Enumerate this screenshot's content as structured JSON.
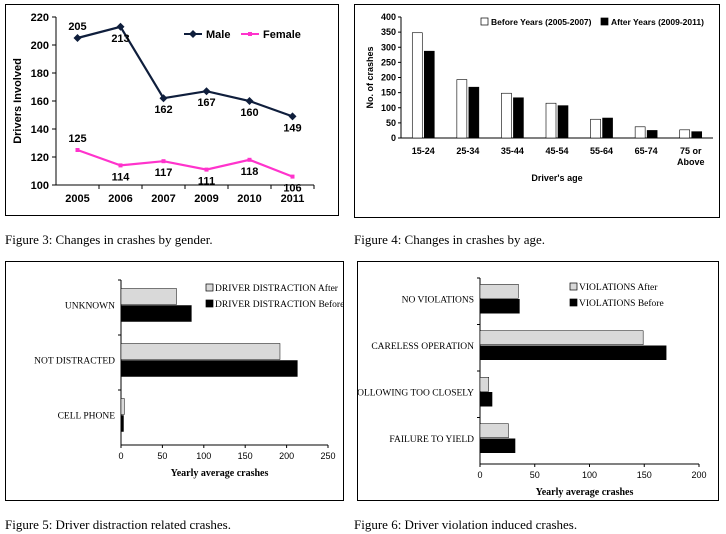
{
  "captions": {
    "fig3": "Figure 3: Changes in crashes by gender.",
    "fig4": "Figure 4: Changes in crashes by age.",
    "fig5": "Figure 5: Driver distraction related crashes.",
    "fig6": "Figure 6: Driver violation induced crashes."
  },
  "chart_data": [
    {
      "id": "fig3",
      "type": "line",
      "xlabel": "",
      "ylabel": "Drivers Involved",
      "categories": [
        "2005",
        "2006",
        "2007",
        "2009",
        "2010",
        "2011"
      ],
      "ylim": [
        100,
        220
      ],
      "yticks": [
        100,
        120,
        140,
        160,
        180,
        200,
        220
      ],
      "legend_position": "top-right",
      "series": [
        {
          "name": "Male",
          "values": [
            205,
            213,
            162,
            167,
            160,
            149
          ],
          "color": "#0f1e3c"
        },
        {
          "name": "Female",
          "values": [
            125,
            114,
            117,
            111,
            118,
            106
          ],
          "color": "#ff33cc"
        }
      ]
    },
    {
      "id": "fig4",
      "type": "bar",
      "xlabel": "Driver's age",
      "ylabel": "No. of crashes",
      "categories": [
        "15-24",
        "25-34",
        "35-44",
        "45-54",
        "55-64",
        "65-74",
        "75 or Above"
      ],
      "ylim": [
        0,
        400
      ],
      "yticks": [
        0,
        50,
        100,
        150,
        200,
        250,
        300,
        350,
        400
      ],
      "legend_position": "top",
      "series": [
        {
          "name": "Before Years (2005-2007)",
          "values": [
            348,
            193,
            148,
            115,
            62,
            37,
            27
          ],
          "color": "#ffffff"
        },
        {
          "name": "After Years (2009-2011)",
          "values": [
            287,
            168,
            133,
            107,
            66,
            25,
            21
          ],
          "color": "#000000"
        }
      ]
    },
    {
      "id": "fig5",
      "type": "bar",
      "orientation": "horizontal",
      "xlabel": "Yearly average crashes",
      "ylabel": "",
      "categories": [
        "UNKNOWN",
        "NOT DISTRACTED",
        "CELL PHONE"
      ],
      "xlim": [
        0,
        250
      ],
      "xticks": [
        0,
        50,
        100,
        150,
        200,
        250
      ],
      "legend_position": "top-right",
      "series": [
        {
          "name": "DRIVER DISTRACTION After",
          "values": [
            67,
            192,
            4
          ],
          "color": "#d9d9d9"
        },
        {
          "name": "DRIVER DISTRACTION Before",
          "values": [
            85,
            213,
            3
          ],
          "color": "#000000"
        }
      ]
    },
    {
      "id": "fig6",
      "type": "bar",
      "orientation": "horizontal",
      "xlabel": "Yearly average crashes",
      "ylabel": "",
      "categories": [
        "NO VIOLATIONS",
        "CARELESS OPERATION",
        "FOLLOWING TOO CLOSELY",
        "FAILURE TO YIELD"
      ],
      "xlim": [
        0,
        200
      ],
      "xticks": [
        0,
        50,
        100,
        150,
        200
      ],
      "legend_position": "top-right",
      "series": [
        {
          "name": "VIOLATIONS After",
          "values": [
            35,
            149,
            8,
            26
          ],
          "color": "#d9d9d9"
        },
        {
          "name": "VIOLATIONS Before",
          "values": [
            36,
            170,
            11,
            32
          ],
          "color": "#000000"
        }
      ]
    }
  ]
}
